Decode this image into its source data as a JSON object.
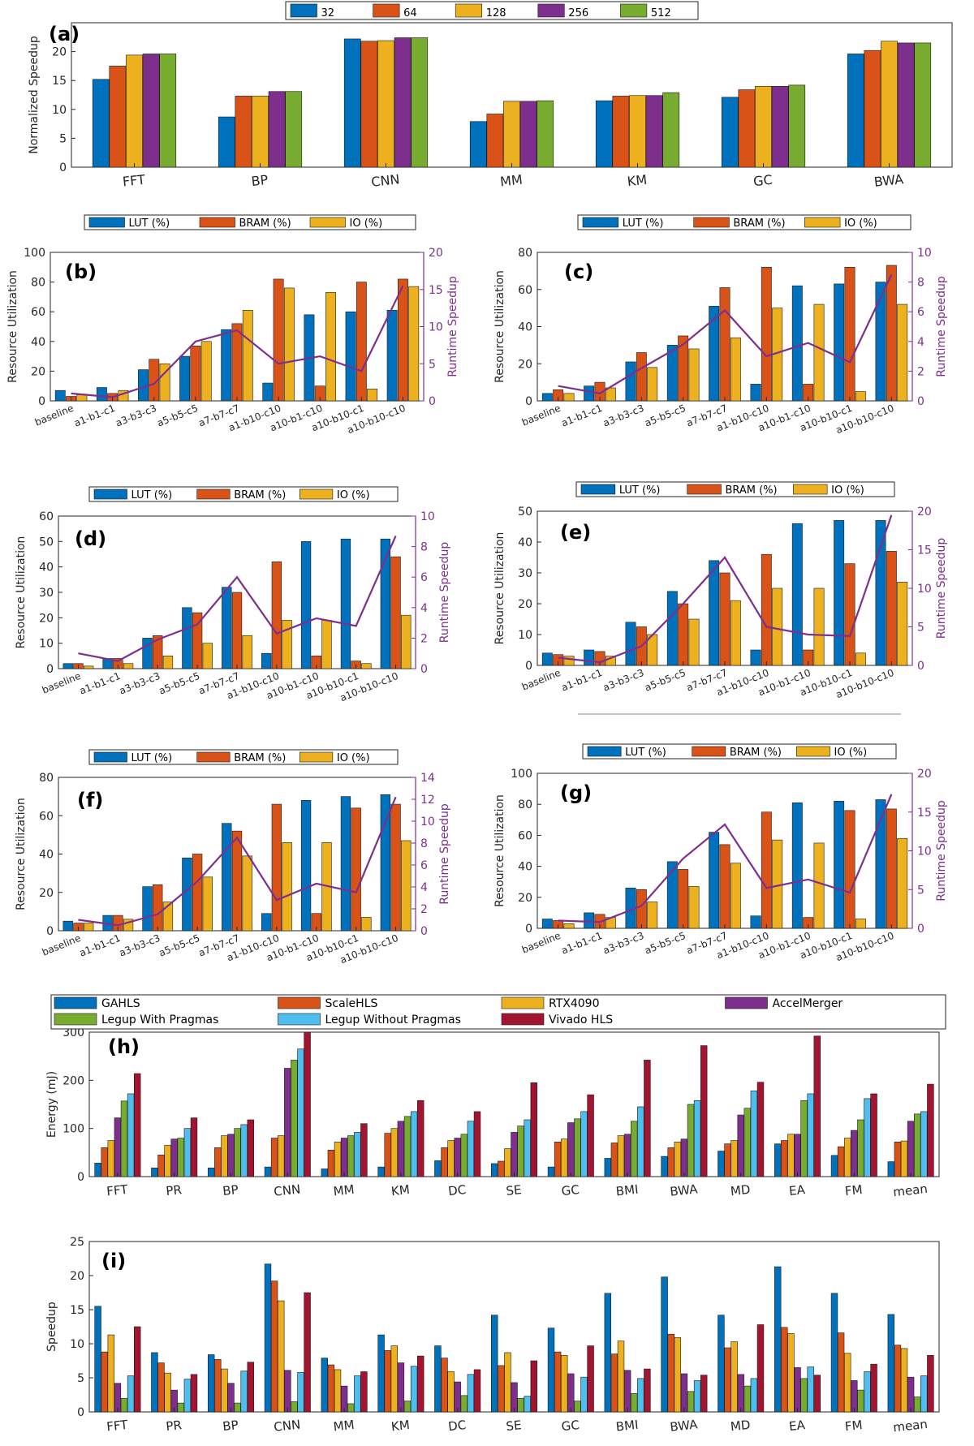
{
  "colors": {
    "c1": "#0072BD",
    "c2": "#D95319",
    "c3": "#EDB120",
    "c4": "#7E2F8E",
    "c5": "#77AC30",
    "c6": "#4DBEEE",
    "c7": "#A2142F",
    "speedup_line": "#7E2F8E"
  },
  "chart_data": [
    {
      "id": "a",
      "type": "bar",
      "title": "(a)",
      "ylabel": "Normalized Speedup",
      "xlabel": "",
      "ylim": [
        0,
        25
      ],
      "yticks": [
        0,
        5,
        10,
        15,
        20
      ],
      "categories": [
        "FFT",
        "BP",
        "CNN",
        "MM",
        "KM",
        "GC",
        "BWA"
      ],
      "legend": "top",
      "series": [
        {
          "name": "32",
          "color_key": "c1",
          "values": [
            15.2,
            8.7,
            22.2,
            7.9,
            11.5,
            12.1,
            19.6
          ]
        },
        {
          "name": "64",
          "color_key": "c2",
          "values": [
            17.5,
            12.3,
            21.8,
            9.2,
            12.3,
            13.4,
            20.2
          ]
        },
        {
          "name": "128",
          "color_key": "c3",
          "values": [
            19.4,
            12.3,
            21.9,
            11.4,
            12.4,
            14.0,
            21.8
          ]
        },
        {
          "name": "256",
          "color_key": "c4",
          "values": [
            19.6,
            13.1,
            22.4,
            11.4,
            12.4,
            14.0,
            21.5
          ]
        },
        {
          "name": "512",
          "color_key": "c5",
          "values": [
            19.6,
            13.1,
            22.4,
            11.5,
            12.9,
            14.2,
            21.5
          ]
        }
      ]
    },
    {
      "id": "b",
      "type": "bar+line",
      "title": "(b)",
      "ylabel": "Resource Utilization",
      "y2label": "Runtime Speedup",
      "ylim": [
        0,
        100
      ],
      "yticks": [
        0,
        20,
        40,
        60,
        80,
        100
      ],
      "y2lim": [
        0,
        20
      ],
      "y2ticks": [
        0,
        5,
        10,
        15,
        20
      ],
      "categories": [
        "baseline",
        "a1-b1-c1",
        "a3-b3-c3",
        "a5-b5-c5",
        "a7-b7-c7",
        "a1-b10-c10",
        "a10-b1-c10",
        "a10-b10-c1",
        "a10-b10-c10"
      ],
      "series": [
        {
          "name": "LUT (%)",
          "color_key": "c1",
          "values": [
            7,
            9,
            21,
            30,
            48,
            12,
            58,
            60,
            61
          ]
        },
        {
          "name": "BRAM (%)",
          "color_key": "c2",
          "values": [
            3,
            5,
            28,
            37,
            52,
            82,
            10,
            80,
            82
          ]
        },
        {
          "name": "IO (%)",
          "color_key": "c3",
          "values": [
            4,
            7,
            25,
            40,
            61,
            76,
            73,
            8,
            77
          ]
        }
      ],
      "line": {
        "name": "Runtime Speedup",
        "values": [
          1.0,
          0.5,
          2.3,
          8.0,
          9.5,
          5.0,
          6.0,
          4.0,
          15.5
        ]
      }
    },
    {
      "id": "c",
      "type": "bar+line",
      "title": "(c)",
      "ylabel": "Resource Utilization",
      "y2label": "Runtime Speedup",
      "ylim": [
        0,
        80
      ],
      "yticks": [
        0,
        20,
        40,
        60,
        80
      ],
      "y2lim": [
        0,
        10
      ],
      "y2ticks": [
        0,
        2,
        4,
        6,
        8,
        10
      ],
      "categories": [
        "baseline",
        "a1-b1-c1",
        "a3-b3-c3",
        "a5-b5-c5",
        "a7-b7-c7",
        "a1-b10-c10",
        "a10-b1-c10",
        "a10-b10-c1",
        "a10-b10-c10"
      ],
      "series": [
        {
          "name": "LUT (%)",
          "color_key": "c1",
          "values": [
            4,
            8,
            21,
            30,
            51,
            9,
            62,
            63,
            64
          ]
        },
        {
          "name": "BRAM (%)",
          "color_key": "c2",
          "values": [
            6,
            10,
            26,
            35,
            61,
            72,
            9,
            72,
            73
          ]
        },
        {
          "name": "IO (%)",
          "color_key": "c3",
          "values": [
            4,
            7,
            18,
            28,
            34,
            50,
            52,
            5,
            52
          ]
        }
      ],
      "line": {
        "name": "Runtime Speedup",
        "values": [
          1.0,
          0.5,
          2.2,
          3.8,
          6.1,
          3.0,
          3.9,
          2.6,
          8.5
        ]
      }
    },
    {
      "id": "d",
      "type": "bar+line",
      "title": "(d)",
      "ylabel": "Resource Utilization",
      "y2label": "Runtime Speedup",
      "ylim": [
        0,
        60
      ],
      "yticks": [
        0,
        10,
        20,
        30,
        40,
        50,
        60
      ],
      "y2lim": [
        0,
        10
      ],
      "y2ticks": [
        0,
        2,
        4,
        6,
        8,
        10
      ],
      "categories": [
        "baseline",
        "a1-b1-c1",
        "a3-b3-c3",
        "a5-b5-c5",
        "a7-b7-c7",
        "a1-b10-c10",
        "a10-b1-c10",
        "a10-b10-c1",
        "a10-b10-c10"
      ],
      "series": [
        {
          "name": "LUT (%)",
          "color_key": "c1",
          "values": [
            2,
            4,
            12,
            24,
            32,
            6,
            50,
            51,
            51
          ]
        },
        {
          "name": "BRAM (%)",
          "color_key": "c2",
          "values": [
            2,
            4,
            13,
            22,
            30,
            42,
            5,
            3,
            44
          ]
        },
        {
          "name": "IO (%)",
          "color_key": "c3",
          "values": [
            1,
            2,
            5,
            10,
            13,
            19,
            19,
            2,
            21
          ]
        }
      ],
      "line": {
        "name": "Runtime Speedup",
        "values": [
          1.0,
          0.5,
          1.9,
          2.9,
          6.0,
          2.3,
          3.3,
          2.8,
          8.7
        ]
      }
    },
    {
      "id": "e",
      "type": "bar+line",
      "title": "(e)",
      "ylabel": "Resource Utilization",
      "y2label": "Runtime Speedup",
      "ylim": [
        0,
        50
      ],
      "yticks": [
        0,
        10,
        20,
        30,
        40,
        50
      ],
      "y2lim": [
        0,
        20
      ],
      "y2ticks": [
        0,
        5,
        10,
        15,
        20
      ],
      "categories": [
        "baseline",
        "a1-b1-c1",
        "a3-b3-c3",
        "a5-b5-c5",
        "a7-b7-c7",
        "a1-b10-c10",
        "a10-b1-c10",
        "a10-b10-c1",
        "a10-b10-c10"
      ],
      "series": [
        {
          "name": "LUT (%)",
          "color_key": "c1",
          "values": [
            4,
            5,
            14,
            24,
            34,
            5,
            46,
            47,
            47
          ]
        },
        {
          "name": "BRAM (%)",
          "color_key": "c2",
          "values": [
            3.5,
            4.5,
            12.5,
            20,
            30,
            36,
            5,
            33,
            37
          ]
        },
        {
          "name": "IO (%)",
          "color_key": "c3",
          "values": [
            3,
            3,
            10,
            15,
            21,
            25,
            25,
            4,
            27
          ]
        }
      ],
      "line": {
        "name": "Runtime Speedup",
        "values": [
          1.0,
          0.4,
          2.5,
          8.0,
          14.0,
          5.0,
          4.0,
          3.8,
          19.5
        ]
      }
    },
    {
      "id": "f",
      "type": "bar+line",
      "title": "(f)",
      "ylabel": "Resource Utilization",
      "y2label": "Runtime Speedup",
      "ylim": [
        0,
        80
      ],
      "yticks": [
        0,
        20,
        40,
        60,
        80
      ],
      "y2lim": [
        0,
        14
      ],
      "y2ticks": [
        0,
        2,
        4,
        6,
        8,
        10,
        12,
        14
      ],
      "categories": [
        "baseline",
        "a1-b1-c1",
        "a3-b3-c3",
        "a5-b5-c5",
        "a7-b7-c7",
        "a1-b10-c10",
        "a10-b1-c10",
        "a10-b10-c1",
        "a10-b10-c10"
      ],
      "series": [
        {
          "name": "LUT (%)",
          "color_key": "c1",
          "values": [
            5,
            8,
            23,
            38,
            56,
            9,
            68,
            70,
            71
          ]
        },
        {
          "name": "BRAM (%)",
          "color_key": "c2",
          "values": [
            4,
            8,
            24,
            40,
            52,
            66,
            9,
            64,
            66
          ]
        },
        {
          "name": "IO (%)",
          "color_key": "c3",
          "values": [
            4,
            6,
            15,
            28,
            39,
            46,
            46,
            7,
            47
          ]
        }
      ],
      "line": {
        "name": "Runtime Speedup",
        "values": [
          1.0,
          0.5,
          1.5,
          4.5,
          8.5,
          2.8,
          4.3,
          3.5,
          12.2
        ]
      }
    },
    {
      "id": "g",
      "type": "bar+line",
      "title": "(g)",
      "ylabel": "Resource Utilization",
      "y2label": "Runtime Speedup",
      "ylim": [
        0,
        100
      ],
      "yticks": [
        0,
        20,
        40,
        60,
        80,
        100
      ],
      "y2lim": [
        0,
        20
      ],
      "y2ticks": [
        0,
        5,
        10,
        15,
        20
      ],
      "categories": [
        "baseline",
        "a1-b1-c1",
        "a3-b3-c3",
        "a5-b5-c5",
        "a7-b7-c7",
        "a1-b10-c10",
        "a10-b1-c10",
        "a10-b10-c1",
        "a10-b10-c10"
      ],
      "series": [
        {
          "name": "LUT (%)",
          "color_key": "c1",
          "values": [
            6,
            10,
            26,
            43,
            62,
            8,
            81,
            82,
            83
          ]
        },
        {
          "name": "BRAM (%)",
          "color_key": "c2",
          "values": [
            5,
            9,
            25,
            38,
            54,
            75,
            7,
            76,
            77
          ]
        },
        {
          "name": "IO (%)",
          "color_key": "c3",
          "values": [
            3,
            7,
            17,
            27,
            42,
            57,
            55,
            6,
            58
          ]
        }
      ],
      "line": {
        "name": "Runtime Speedup",
        "values": [
          1.0,
          0.8,
          2.9,
          9.0,
          13.4,
          5.2,
          6.3,
          4.6,
          17.3
        ]
      }
    },
    {
      "id": "h",
      "type": "bar",
      "title": "(h)",
      "ylabel": "Energy (mJ)",
      "ylim": [
        0,
        300
      ],
      "yticks": [
        0,
        100,
        200,
        300
      ],
      "categories": [
        "FFT",
        "PR",
        "BP",
        "CNN",
        "MM",
        "KM",
        "DC",
        "SE",
        "GC",
        "BMI",
        "BWA",
        "MD",
        "EA",
        "FM",
        "mean"
      ],
      "legend": "top",
      "series": [
        {
          "name": "GAHLS",
          "color_key": "c1",
          "values": [
            28,
            18,
            18,
            20,
            16,
            20,
            33,
            27,
            20,
            38,
            42,
            53,
            68,
            44,
            31
          ]
        },
        {
          "name": "ScaleHLS",
          "color_key": "c2",
          "values": [
            60,
            45,
            60,
            80,
            55,
            90,
            60,
            32,
            72,
            70,
            60,
            68,
            75,
            62,
            72
          ]
        },
        {
          "name": "RTX4090",
          "color_key": "c3",
          "values": [
            75,
            65,
            85,
            85,
            72,
            100,
            75,
            58,
            78,
            85,
            72,
            75,
            88,
            80,
            74
          ]
        },
        {
          "name": "AccelMerger",
          "color_key": "c4",
          "values": [
            122,
            78,
            88,
            225,
            80,
            115,
            80,
            92,
            112,
            88,
            78,
            128,
            88,
            96,
            115
          ]
        },
        {
          "name": "Legup With Pragmas",
          "color_key": "c5",
          "values": [
            157,
            80,
            100,
            242,
            85,
            125,
            88,
            105,
            120,
            115,
            150,
            142,
            158,
            118,
            130
          ]
        },
        {
          "name": "Legup Without Pragmas",
          "color_key": "c6",
          "values": [
            172,
            100,
            108,
            265,
            92,
            135,
            115,
            118,
            135,
            145,
            158,
            178,
            172,
            162,
            135
          ]
        },
        {
          "name": "Vivado HLS",
          "color_key": "c7",
          "values": [
            214,
            122,
            118,
            300,
            110,
            158,
            135,
            195,
            170,
            242,
            272,
            196,
            292,
            172,
            192
          ]
        }
      ]
    },
    {
      "id": "i",
      "type": "bar",
      "title": "(i)",
      "ylabel": "Speedup",
      "ylim": [
        0,
        25
      ],
      "yticks": [
        0,
        5,
        10,
        15,
        20,
        25
      ],
      "categories": [
        "FFT",
        "PR",
        "BP",
        "CNN",
        "MM",
        "KM",
        "DC",
        "SE",
        "GC",
        "BMI",
        "BWA",
        "MD",
        "EA",
        "FM",
        "mean"
      ],
      "series": [
        {
          "name": "GAHLS",
          "color_key": "c1",
          "values": [
            15.5,
            8.7,
            8.4,
            21.7,
            7.9,
            11.3,
            9.7,
            14.2,
            12.3,
            17.4,
            19.8,
            14.2,
            21.3,
            17.4,
            14.3
          ]
        },
        {
          "name": "ScaleHLS",
          "color_key": "c2",
          "values": [
            8.8,
            7.2,
            7.7,
            19.2,
            6.9,
            9.0,
            7.9,
            6.8,
            8.8,
            8.5,
            11.4,
            9.4,
            12.4,
            11.6,
            9.8
          ]
        },
        {
          "name": "RTX4090",
          "color_key": "c3",
          "values": [
            11.3,
            5.7,
            6.3,
            16.3,
            6.2,
            9.7,
            5.9,
            8.7,
            8.3,
            10.4,
            10.9,
            10.3,
            11.5,
            8.6,
            9.3
          ]
        },
        {
          "name": "AccelMerger",
          "color_key": "c4",
          "values": [
            4.2,
            3.2,
            4.2,
            6.1,
            3.8,
            7.2,
            4.4,
            4.3,
            5.6,
            6.1,
            5.6,
            5.5,
            6.5,
            4.6,
            5.1
          ]
        },
        {
          "name": "Legup With Pragmas",
          "color_key": "c5",
          "values": [
            2.0,
            1.3,
            1.3,
            1.5,
            1.2,
            1.6,
            2.4,
            2.0,
            1.6,
            2.7,
            3.0,
            3.8,
            4.9,
            3.2,
            2.2
          ]
        },
        {
          "name": "Legup Without Pragmas",
          "color_key": "c6",
          "values": [
            5.3,
            4.8,
            6.0,
            5.8,
            5.3,
            6.7,
            5.5,
            2.3,
            5.1,
            4.9,
            4.6,
            4.9,
            6.6,
            5.9,
            5.3
          ]
        },
        {
          "name": "Vivado HLS",
          "color_key": "c7",
          "values": [
            12.5,
            5.5,
            7.3,
            17.5,
            5.9,
            8.2,
            6.2,
            7.5,
            9.7,
            6.3,
            5.4,
            12.8,
            5.4,
            7.0,
            8.3
          ]
        }
      ]
    }
  ]
}
